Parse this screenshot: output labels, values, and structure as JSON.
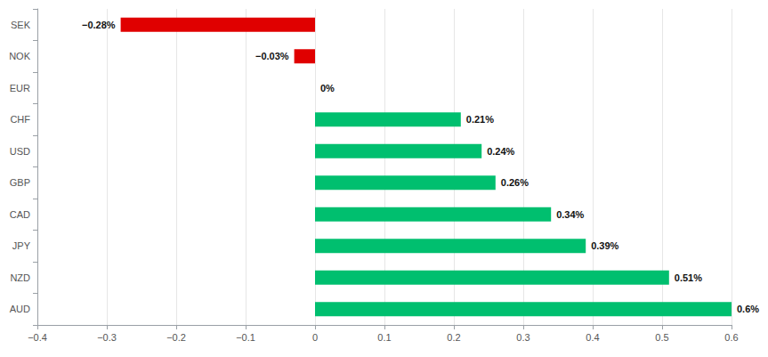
{
  "chart_data": {
    "type": "bar",
    "orientation": "horizontal",
    "categories": [
      "SEK",
      "NOK",
      "EUR",
      "CHF",
      "USD",
      "GBP",
      "CAD",
      "JPY",
      "NZD",
      "AUD"
    ],
    "values": [
      -0.28,
      -0.03,
      0,
      0.21,
      0.24,
      0.26,
      0.34,
      0.39,
      0.51,
      0.6
    ],
    "value_labels": [
      "−0.28%",
      "−0.03%",
      "0%",
      "0.21%",
      "0.24%",
      "0.26%",
      "0.34%",
      "0.39%",
      "0.51%",
      "0.6%"
    ],
    "colors": [
      "#e00000",
      "#e00000",
      "#00bf6f",
      "#00bf6f",
      "#00bf6f",
      "#00bf6f",
      "#00bf6f",
      "#00bf6f",
      "#00bf6f",
      "#00bf6f"
    ],
    "xlim": [
      -0.4,
      0.6
    ],
    "xticks": [
      {
        "value": -0.4,
        "label": "−0.4"
      },
      {
        "value": -0.3,
        "label": "−0.3"
      },
      {
        "value": -0.2,
        "label": "−0.2"
      },
      {
        "value": -0.1,
        "label": "−0.1"
      },
      0,
      0.1,
      0.2,
      0.3,
      0.4,
      0.5,
      0.6
    ],
    "grid": true,
    "data_labels": true
  }
}
